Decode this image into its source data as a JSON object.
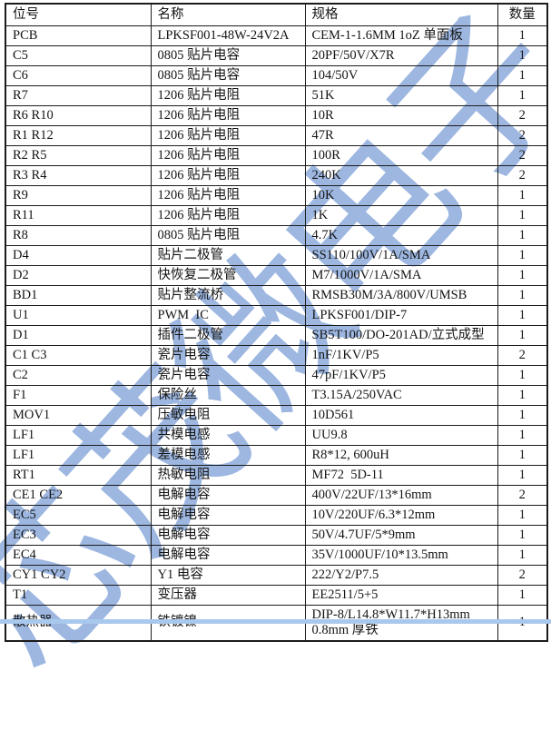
{
  "watermark": {
    "text": "芯茂微电子",
    "color": "#7da0d7"
  },
  "colors": {
    "border": "#1b1b1b",
    "text": "#141414",
    "background": "#ffffff",
    "bottom_strip": "#a9c8ee"
  },
  "table": {
    "headers": [
      "位号",
      "名称",
      "规格",
      "数量"
    ],
    "rows": [
      [
        "PCB",
        "LPKSF001-48W-24V2A",
        "CEM-1-1.6MM 1oZ 单面板",
        "1"
      ],
      [
        "C5",
        "0805 贴片电容",
        "20PF/50V/X7R",
        "1"
      ],
      [
        "C6",
        "0805 贴片电容",
        "104/50V",
        "1"
      ],
      [
        "R7",
        "1206 贴片电阻",
        "51K",
        "1"
      ],
      [
        "R6 R10",
        "1206 贴片电阻",
        "10R",
        "2"
      ],
      [
        "R1 R12",
        "1206 贴片电阻",
        "47R",
        "2"
      ],
      [
        "R2 R5",
        "1206 贴片电阻",
        "100R",
        "2"
      ],
      [
        "R3 R4",
        "1206 贴片电阻",
        "240K",
        "2"
      ],
      [
        "R9",
        "1206 贴片电阻",
        "10K",
        "1"
      ],
      [
        "R11",
        "1206 贴片电阻",
        "1K",
        "1"
      ],
      [
        "R8",
        "0805 贴片电阻",
        "4.7K",
        "1"
      ],
      [
        "D4",
        "贴片二极管",
        "SS110/100V/1A/SMA",
        "1"
      ],
      [
        "D2",
        "快恢复二极管",
        "M7/1000V/1A/SMA",
        "1"
      ],
      [
        "BD1",
        "贴片整流桥",
        "RMSB30M/3A/800V/UMSB",
        "1"
      ],
      [
        "U1",
        "PWM  IC",
        "LPKSF001/DIP-7",
        "1"
      ],
      [
        "D1",
        "插件二极管",
        "SB5T100/DO-201AD/立式成型",
        "1"
      ],
      [
        "C1 C3",
        "瓷片电容",
        "1nF/1KV/P5",
        "2"
      ],
      [
        "C2",
        "瓷片电容",
        "47pF/1KV/P5",
        "1"
      ],
      [
        "F1",
        "保险丝",
        "T3.15A/250VAC",
        "1"
      ],
      [
        "MOV1",
        "压敏电阻",
        "10D561",
        "1"
      ],
      [
        "LF1",
        "共模电感",
        "UU9.8",
        "1"
      ],
      [
        "LF1",
        "差模电感",
        "R8*12, 600uH",
        "1"
      ],
      [
        "RT1",
        "热敏电阻",
        "MF72  5D-11",
        "1"
      ],
      [
        "CE1 CE2",
        "电解电容",
        "400V/22UF/13*16mm",
        "2"
      ],
      [
        "EC5",
        "电解电容",
        "10V/220UF/6.3*12mm",
        "1"
      ],
      [
        "EC3",
        "电解电容",
        "50V/4.7UF/5*9mm",
        "1"
      ],
      [
        "EC4",
        "电解电容",
        "35V/1000UF/10*13.5mm",
        "1"
      ],
      [
        "CY1 CY2",
        "Y1 电容",
        "222/Y2/P7.5",
        "2"
      ],
      [
        "T1",
        "变压器",
        "EE2511/5+5",
        "1"
      ],
      [
        "散热器",
        "铁镀镍",
        "DIP-8/L14.8*W11.7*H13mm\n0.8mm 厚铁",
        "1"
      ]
    ]
  }
}
